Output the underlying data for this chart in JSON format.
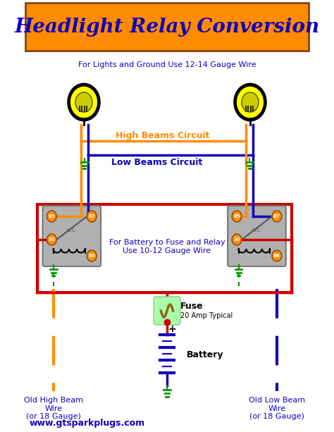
{
  "title": "Headlight Relay Conversion",
  "title_color": "#1100BB",
  "title_bg": "#FF8C00",
  "bg_color": "#FFFFFF",
  "subtitle": "For Lights and Ground Use 12-14 Gauge Wire",
  "text_battery_fuse": "For Battery to Fuse and Relay\nUse 10-12 Gauge Wire",
  "text_fuse": "Fuse",
  "text_fuse2": "20 Amp Typical",
  "text_battery": "Battery",
  "text_high": "High Beams Circuit",
  "text_low": "Low Beams Circuit",
  "text_old_high": "Old High Beam\nWire\n(or 18 Gauge)",
  "text_old_low": "Old Low Beam\nWire\n(or 18 Gauge)",
  "text_website": "www.gtsparkplugs.com",
  "orange": "#FF8C00",
  "blue": "#1100BB",
  "red": "#CC0000",
  "green": "#009900",
  "yellow": "#FFFF00",
  "gray": "#B0B0B0",
  "brown": "#8B6914",
  "light_green": "#AAFFAA"
}
